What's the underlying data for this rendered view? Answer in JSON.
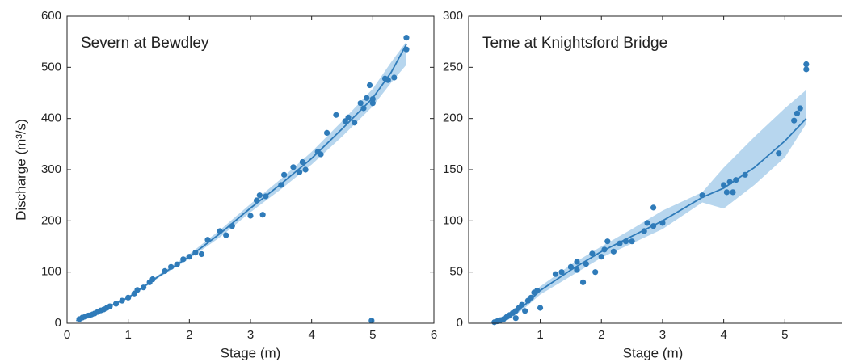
{
  "chart_data": [
    {
      "type": "scatter",
      "title": "Severn at Bewdley",
      "xlabel": "Stage (m)",
      "ylabel": "Discharge (m³/s)",
      "color": "#2f7bb9",
      "band_color": "#b7d6ee",
      "xlim": [
        0,
        6
      ],
      "ylim": [
        0,
        600
      ],
      "xticks": [
        0,
        1,
        2,
        3,
        4,
        5,
        6
      ],
      "yticks": [
        0,
        100,
        200,
        300,
        400,
        500,
        600
      ],
      "x": [
        0.2,
        0.25,
        0.3,
        0.35,
        0.4,
        0.45,
        0.5,
        0.55,
        0.6,
        0.65,
        0.7,
        0.8,
        0.9,
        1.0,
        1.1,
        1.15,
        1.25,
        1.35,
        1.4,
        1.6,
        1.7,
        1.8,
        1.9,
        2.0,
        2.1,
        2.2,
        2.3,
        2.5,
        2.6,
        2.7,
        3.0,
        3.1,
        3.15,
        3.2,
        3.25,
        3.5,
        3.55,
        3.7,
        3.8,
        3.85,
        3.9,
        4.1,
        4.15,
        4.25,
        4.4,
        4.55,
        4.6,
        4.7,
        4.8,
        4.85,
        4.9,
        4.95,
        5.0,
        5.0,
        4.98,
        5.2,
        5.25,
        5.35,
        5.55,
        5.55
      ],
      "values": [
        8,
        11,
        13,
        15,
        17,
        19,
        22,
        25,
        27,
        30,
        33,
        38,
        44,
        50,
        58,
        65,
        70,
        80,
        86,
        102,
        110,
        115,
        125,
        130,
        138,
        135,
        163,
        180,
        172,
        190,
        210,
        240,
        250,
        212,
        248,
        270,
        290,
        305,
        295,
        315,
        300,
        335,
        330,
        372,
        407,
        395,
        402,
        392,
        430,
        420,
        440,
        465,
        430,
        438,
        5,
        478,
        475,
        480,
        558,
        535
      ],
      "fit": {
        "x": [
          0.15,
          0.5,
          1,
          1.5,
          2,
          2.5,
          3,
          3.5,
          4,
          4.5,
          5,
          5.3,
          5.55
        ],
        "values": [
          5,
          22,
          50,
          92,
          130,
          175,
          225,
          272,
          322,
          380,
          440,
          490,
          545
        ],
        "upper": [
          5,
          23,
          52,
          95,
          135,
          182,
          233,
          282,
          335,
          395,
          458,
          510,
          550
        ],
        "lower": [
          5,
          21,
          48,
          89,
          126,
          168,
          217,
          262,
          310,
          365,
          424,
          470,
          505
        ]
      }
    },
    {
      "type": "scatter",
      "title": "Teme at Knightsford Bridge",
      "xlabel": "Stage (m)",
      "color": "#2f7bb9",
      "band_color": "#b7d6ee",
      "xlim": [
        -0.17,
        6
      ],
      "ylim": [
        0,
        300
      ],
      "xticks": [
        1,
        2,
        3,
        4,
        5
      ],
      "yticks": [
        0,
        50,
        100,
        150,
        200,
        250,
        300
      ],
      "x": [
        0.25,
        0.3,
        0.35,
        0.4,
        0.45,
        0.5,
        0.55,
        0.6,
        0.6,
        0.65,
        0.7,
        0.75,
        0.8,
        0.85,
        0.9,
        0.95,
        1.0,
        1.25,
        1.35,
        1.5,
        1.6,
        1.6,
        1.7,
        1.75,
        1.85,
        1.9,
        2.0,
        2.05,
        2.1,
        2.2,
        2.3,
        2.4,
        2.5,
        2.7,
        2.75,
        2.85,
        2.85,
        3.0,
        3.65,
        4.0,
        4.05,
        4.1,
        4.15,
        4.2,
        4.35,
        4.9,
        5.15,
        5.2,
        5.25,
        5.35,
        5.35
      ],
      "values": [
        1,
        2,
        3,
        4,
        6,
        8,
        10,
        5,
        12,
        15,
        18,
        12,
        22,
        25,
        30,
        32,
        15,
        48,
        50,
        55,
        60,
        52,
        40,
        58,
        68,
        50,
        65,
        72,
        80,
        70,
        78,
        80,
        80,
        90,
        98,
        113,
        95,
        98,
        125,
        135,
        128,
        138,
        128,
        140,
        145,
        166,
        198,
        205,
        210,
        248,
        253
      ],
      "fit": {
        "x": [
          0.25,
          0.5,
          0.75,
          1,
          1.5,
          2,
          2.5,
          3,
          3.65,
          4,
          4.5,
          5,
          5.35
        ],
        "values": [
          0,
          6,
          18,
          32,
          52,
          70,
          85,
          100,
          123,
          132,
          152,
          178,
          200
        ],
        "upper": [
          1,
          8,
          21,
          36,
          57,
          75,
          92,
          110,
          128,
          152,
          182,
          210,
          228
        ],
        "lower": [
          0,
          4,
          15,
          28,
          46,
          64,
          78,
          92,
          118,
          112,
          135,
          162,
          195
        ]
      }
    }
  ]
}
